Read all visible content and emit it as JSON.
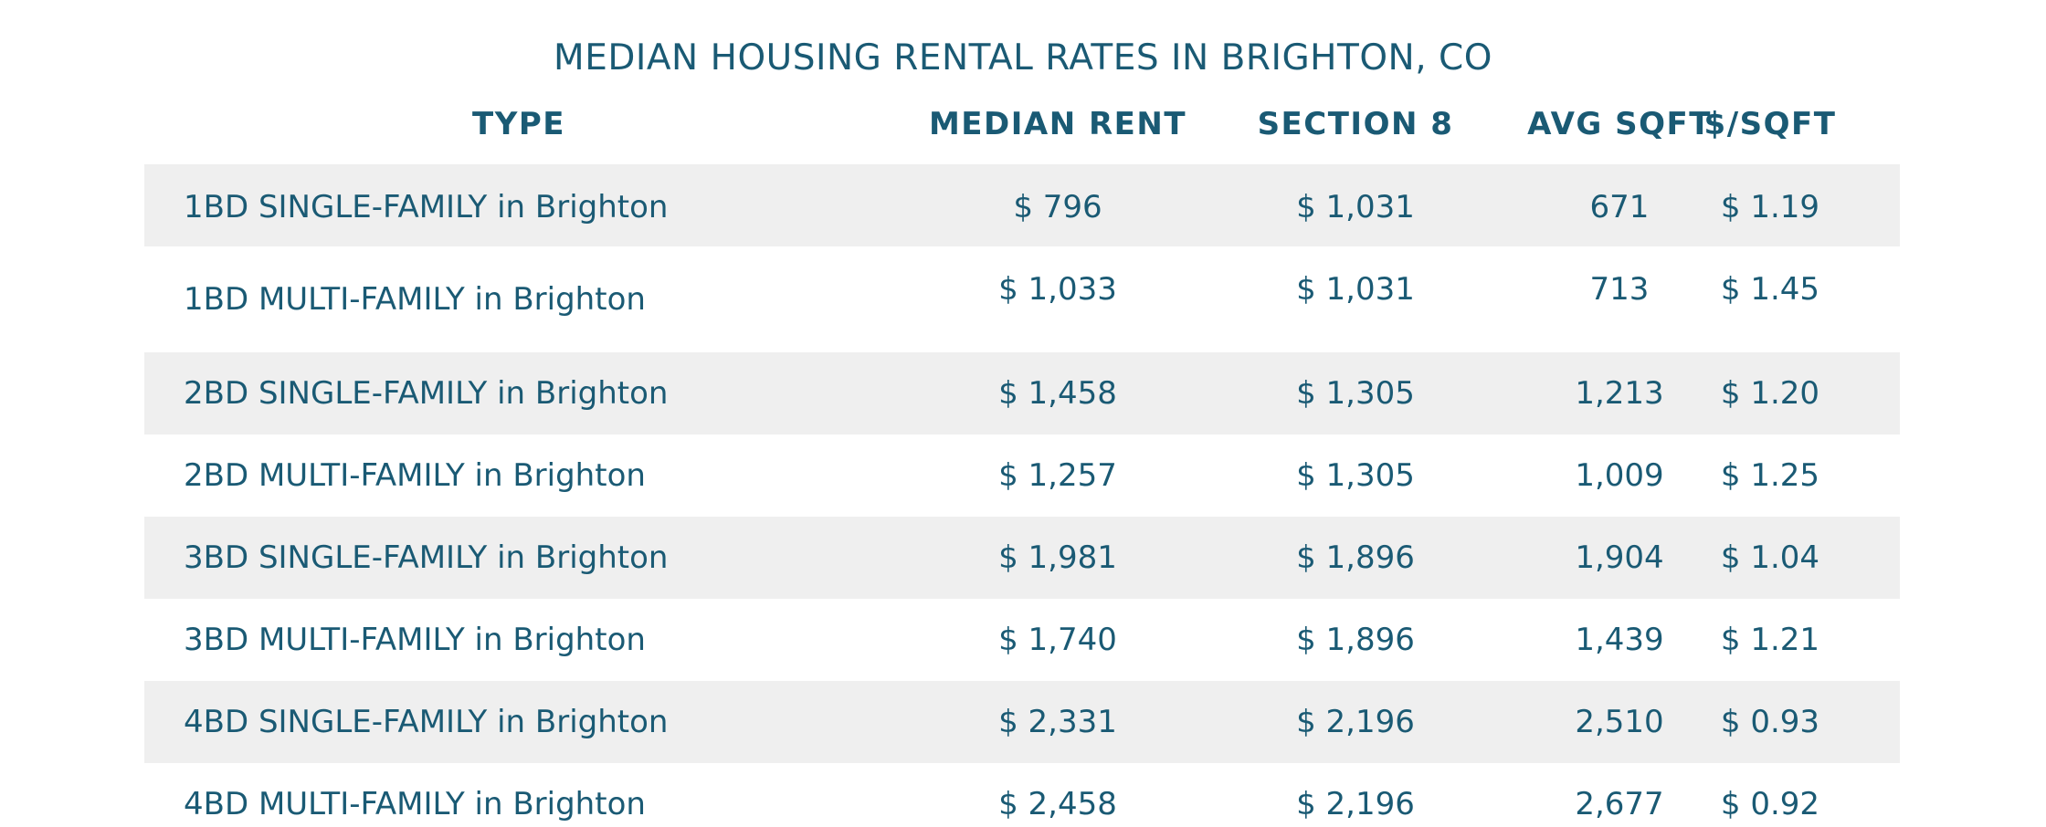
{
  "title": "MEDIAN HOUSING RENTAL RATES IN BRIGHTON, CO",
  "headers": {
    "type": "TYPE",
    "median_rent": "MEDIAN RENT",
    "section8": "SECTION 8",
    "avg_sqft": "AVG SQFT",
    "price_per_sqft": "$/SQFT"
  },
  "rows": [
    {
      "type": "1BD SINGLE-FAMILY in Brighton",
      "median_rent": "$ 796",
      "section8": "$ 1,031",
      "avg_sqft": "671",
      "price_per_sqft": "$ 1.19"
    },
    {
      "type": "1BD MULTI-FAMILY in Brighton",
      "median_rent": "$ 1,033",
      "section8": "$ 1,031",
      "avg_sqft": "713",
      "price_per_sqft": "$ 1.45"
    },
    {
      "type": "2BD SINGLE-FAMILY in Brighton",
      "median_rent": "$ 1,458",
      "section8": "$ 1,305",
      "avg_sqft": "1,213",
      "price_per_sqft": "$ 1.20"
    },
    {
      "type": "2BD MULTI-FAMILY in Brighton",
      "median_rent": "$ 1,257",
      "section8": "$ 1,305",
      "avg_sqft": "1,009",
      "price_per_sqft": "$ 1.25"
    },
    {
      "type": "3BD SINGLE-FAMILY in Brighton",
      "median_rent": "$ 1,981",
      "section8": "$ 1,896",
      "avg_sqft": "1,904",
      "price_per_sqft": "$ 1.04"
    },
    {
      "type": "3BD MULTI-FAMILY in Brighton",
      "median_rent": "$ 1,740",
      "section8": "$ 1,896",
      "avg_sqft": "1,439",
      "price_per_sqft": "$ 1.21"
    },
    {
      "type": "4BD SINGLE-FAMILY in Brighton",
      "median_rent": "$ 2,331",
      "section8": "$ 2,196",
      "avg_sqft": "2,510",
      "price_per_sqft": "$ 0.93"
    },
    {
      "type": "4BD MULTI-FAMILY in Brighton",
      "median_rent": "$ 2,458",
      "section8": "$ 2,196",
      "avg_sqft": "2,677",
      "price_per_sqft": "$ 0.92"
    }
  ],
  "colors": {
    "text": "#1a5a74",
    "row_shade": "#efefef",
    "background": "#ffffff"
  }
}
